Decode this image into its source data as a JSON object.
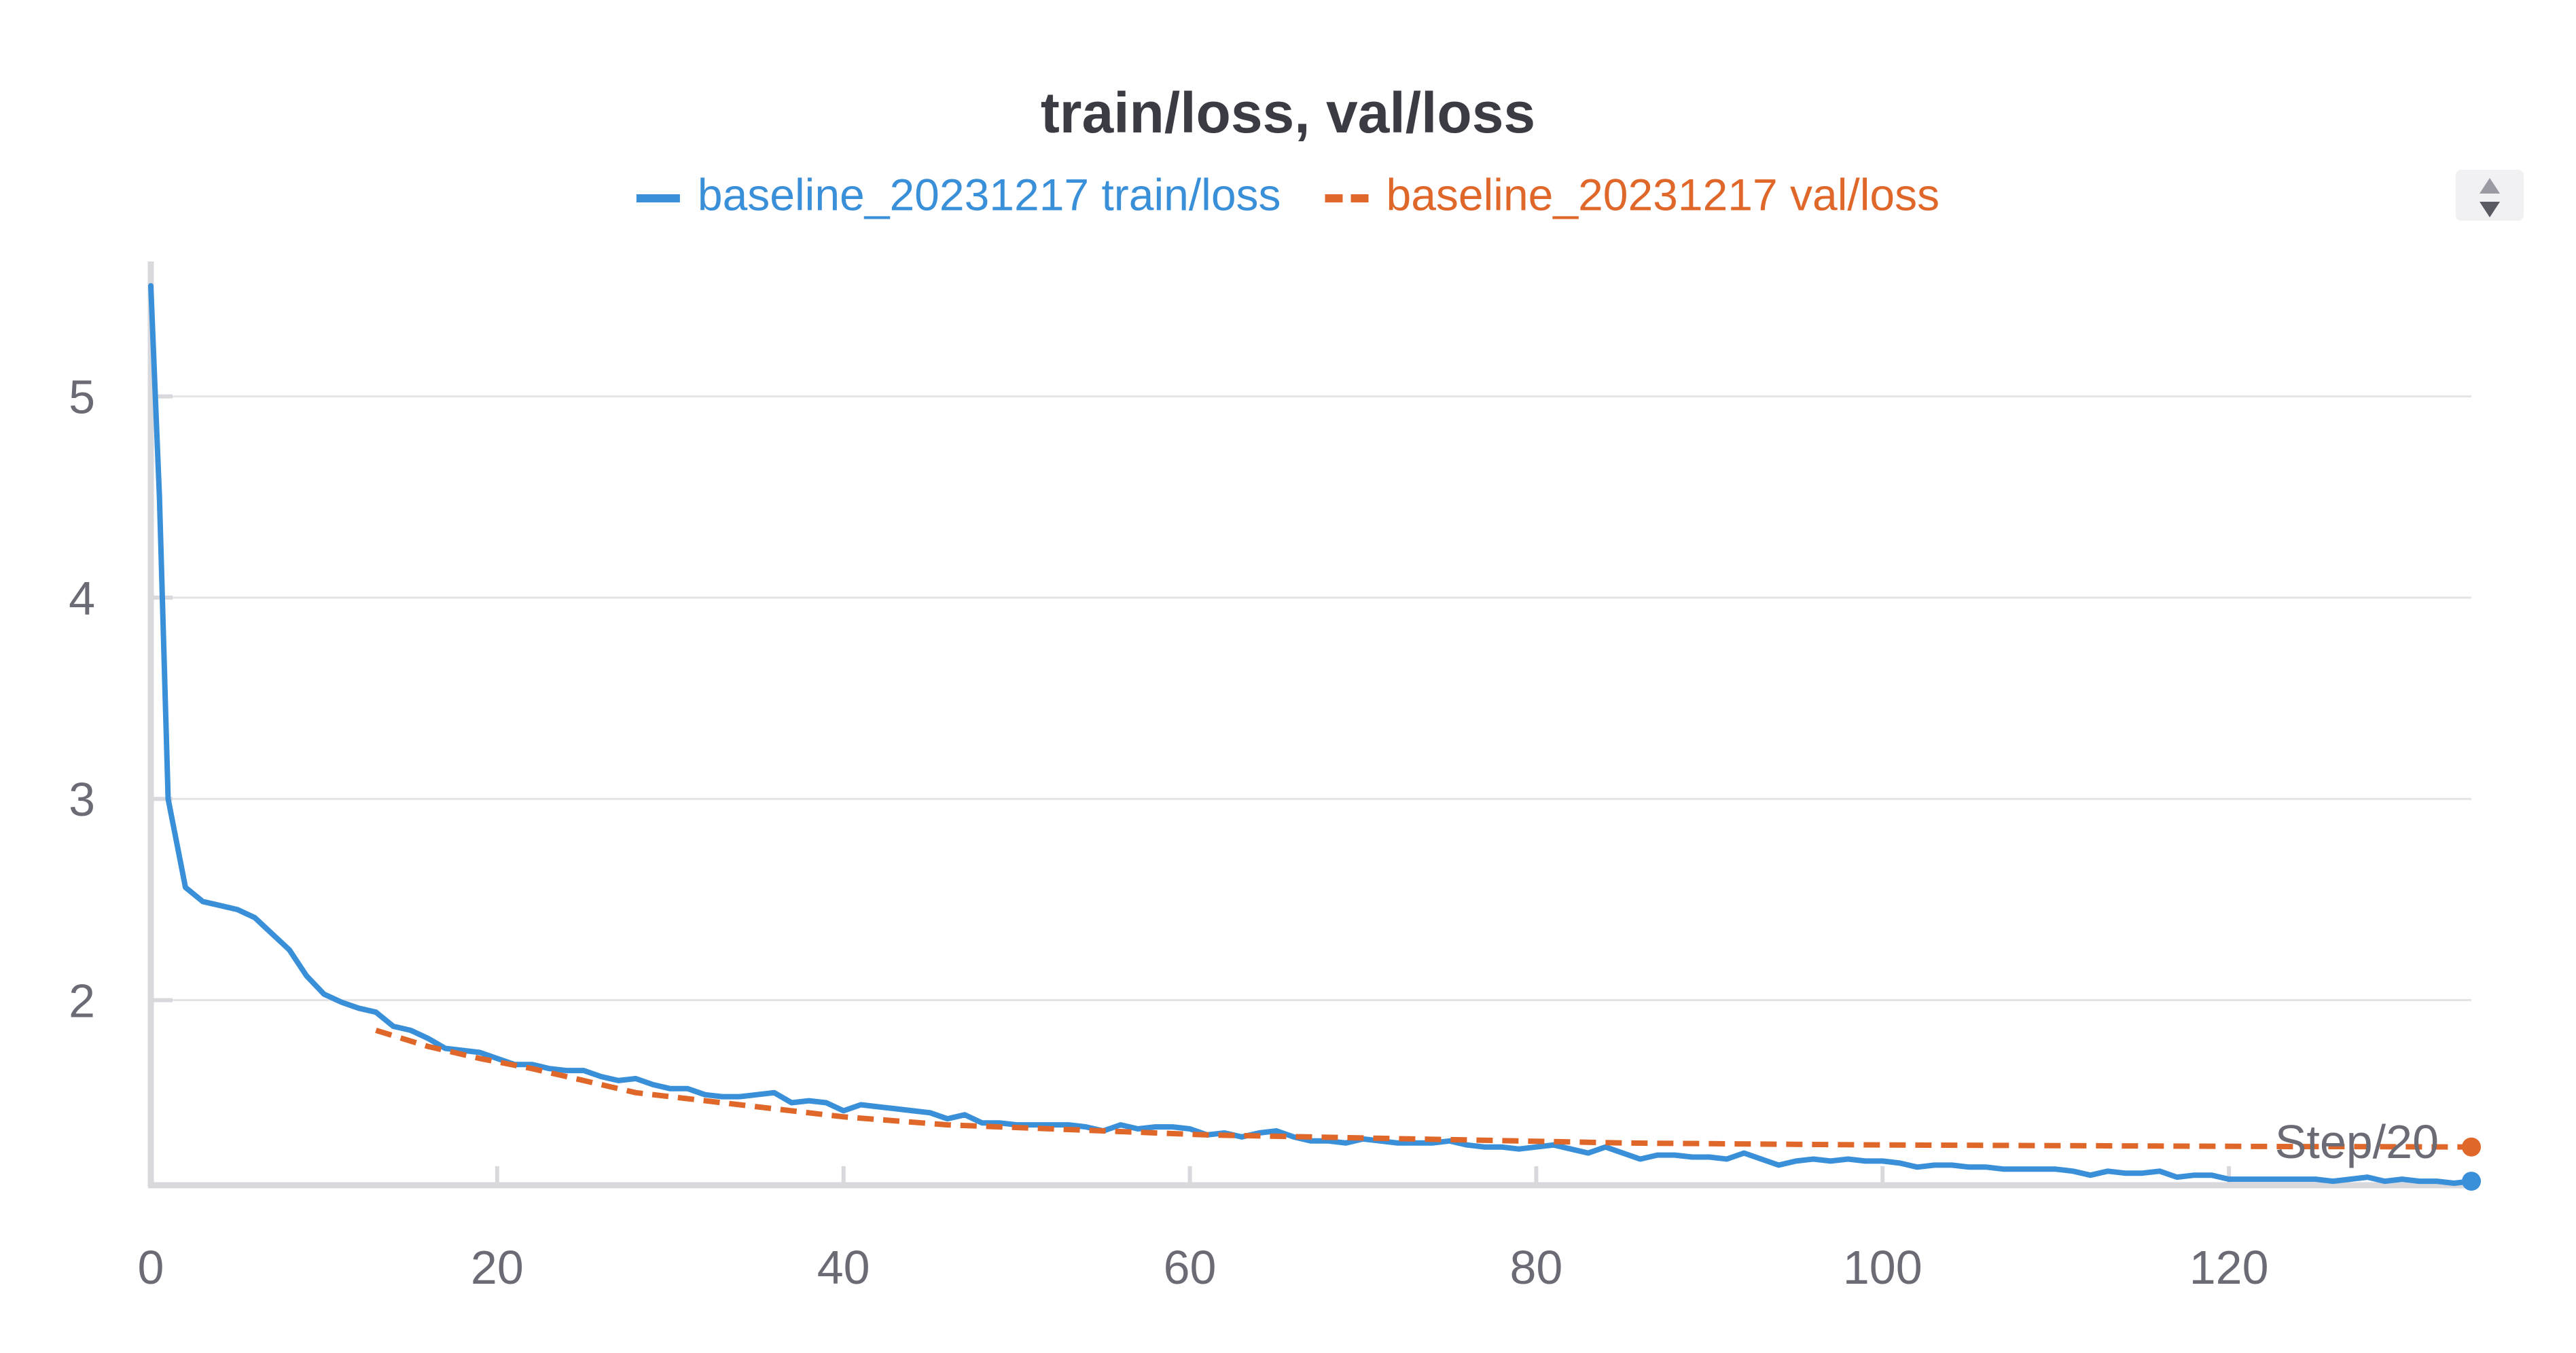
{
  "chart_data": {
    "type": "line",
    "title": "train/loss, val/loss",
    "xlabel_inline": "Step/20",
    "xlim": [
      0,
      134
    ],
    "ylim": [
      1.08,
      5.62
    ],
    "x_ticks": [
      0,
      20,
      40,
      60,
      80,
      100,
      120
    ],
    "y_ticks": [
      2,
      3,
      4,
      5
    ],
    "grid": true,
    "legend_position": "top-center",
    "series": [
      {
        "name": "baseline_20231217 train/loss",
        "color": "#3a8fd9",
        "dash": "solid",
        "end_marker": true,
        "x": [
          0,
          0.5,
          1,
          2,
          3,
          4,
          5,
          6,
          7,
          8,
          9,
          10,
          11,
          12,
          13,
          14,
          15,
          16,
          17,
          18,
          19,
          20,
          21,
          22,
          23,
          24,
          25,
          26,
          27,
          28,
          29,
          30,
          31,
          32,
          33,
          34,
          35,
          36,
          37,
          38,
          39,
          40,
          41,
          42,
          43,
          44,
          45,
          46,
          47,
          48,
          49,
          50,
          51,
          52,
          53,
          54,
          55,
          56,
          57,
          58,
          59,
          60,
          61,
          62,
          63,
          64,
          65,
          66,
          67,
          68,
          69,
          70,
          71,
          72,
          73,
          74,
          75,
          76,
          77,
          78,
          79,
          80,
          81,
          82,
          83,
          84,
          85,
          86,
          87,
          88,
          89,
          90,
          91,
          92,
          93,
          94,
          95,
          96,
          97,
          98,
          99,
          100,
          101,
          102,
          103,
          104,
          105,
          106,
          107,
          108,
          109,
          110,
          111,
          112,
          113,
          114,
          115,
          116,
          117,
          118,
          119,
          120,
          121,
          122,
          123,
          124,
          125,
          126,
          127,
          128,
          129,
          130,
          131,
          132,
          133,
          134
        ],
        "y": [
          5.55,
          4.5,
          3.0,
          2.56,
          2.49,
          2.47,
          2.45,
          2.41,
          2.33,
          2.25,
          2.12,
          2.03,
          1.99,
          1.96,
          1.94,
          1.87,
          1.85,
          1.81,
          1.76,
          1.75,
          1.74,
          1.71,
          1.68,
          1.68,
          1.66,
          1.65,
          1.65,
          1.62,
          1.6,
          1.61,
          1.58,
          1.56,
          1.56,
          1.53,
          1.52,
          1.52,
          1.53,
          1.54,
          1.49,
          1.5,
          1.49,
          1.45,
          1.48,
          1.47,
          1.46,
          1.45,
          1.44,
          1.41,
          1.43,
          1.39,
          1.39,
          1.38,
          1.38,
          1.38,
          1.38,
          1.37,
          1.35,
          1.38,
          1.36,
          1.37,
          1.37,
          1.36,
          1.33,
          1.34,
          1.32,
          1.34,
          1.35,
          1.32,
          1.3,
          1.3,
          1.29,
          1.31,
          1.3,
          1.29,
          1.29,
          1.29,
          1.3,
          1.28,
          1.27,
          1.27,
          1.26,
          1.27,
          1.28,
          1.26,
          1.24,
          1.27,
          1.24,
          1.21,
          1.23,
          1.23,
          1.22,
          1.22,
          1.21,
          1.24,
          1.21,
          1.18,
          1.2,
          1.21,
          1.2,
          1.21,
          1.2,
          1.2,
          1.19,
          1.17,
          1.18,
          1.18,
          1.17,
          1.17,
          1.16,
          1.16,
          1.16,
          1.16,
          1.15,
          1.13,
          1.15,
          1.14,
          1.14,
          1.15,
          1.12,
          1.13,
          1.13,
          1.11,
          1.11,
          1.11,
          1.11,
          1.11,
          1.11,
          1.1,
          1.11,
          1.12,
          1.1,
          1.11,
          1.1,
          1.1,
          1.09,
          1.1
        ]
      },
      {
        "name": "baseline_20231217 val/loss",
        "color": "#e0672a",
        "dash": "dashed",
        "end_marker": true,
        "x": [
          13,
          16,
          19,
          22,
          25,
          28,
          31,
          34,
          37,
          40,
          43,
          46,
          49,
          52,
          55,
          58,
          61,
          64,
          67,
          70,
          73,
          76,
          79,
          82,
          85,
          88,
          91,
          94,
          97,
          100,
          103,
          106,
          109,
          112,
          115,
          118,
          121,
          124,
          127,
          130,
          134
        ],
        "y": [
          1.85,
          1.77,
          1.71,
          1.66,
          1.6,
          1.54,
          1.51,
          1.48,
          1.45,
          1.42,
          1.4,
          1.38,
          1.37,
          1.36,
          1.35,
          1.34,
          1.33,
          1.325,
          1.32,
          1.315,
          1.31,
          1.305,
          1.3,
          1.295,
          1.29,
          1.288,
          1.286,
          1.284,
          1.282,
          1.28,
          1.279,
          1.278,
          1.277,
          1.276,
          1.275,
          1.274,
          1.273,
          1.272,
          1.272,
          1.271,
          1.27
        ]
      }
    ]
  },
  "ui": {
    "scroll_icon": "up-down-arrows-icon"
  }
}
